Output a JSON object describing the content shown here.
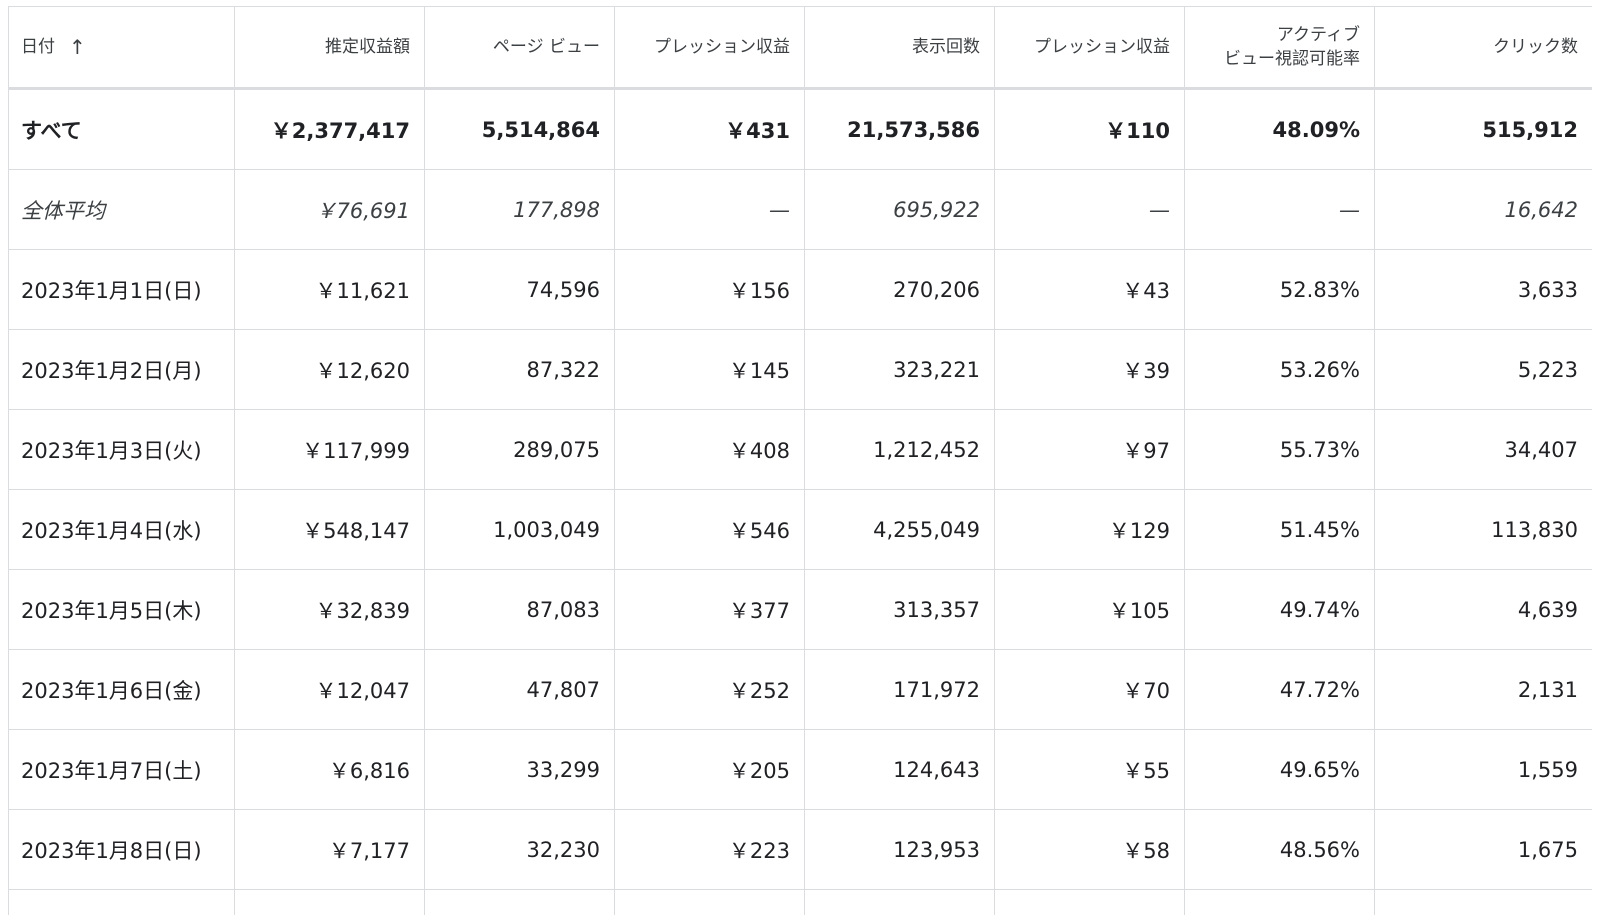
{
  "columns": [
    {
      "label": "日付",
      "sort_icon": "arrow-up-icon"
    },
    {
      "label": "推定収益額"
    },
    {
      "label": "ページ ビュー"
    },
    {
      "label": "プレッション収益"
    },
    {
      "label": "表示回数"
    },
    {
      "label": "プレッション収益"
    },
    {
      "label_line1": "アクティブ",
      "label_line2": "ビュー視認可能率"
    },
    {
      "label": "クリック数"
    }
  ],
  "total_row": [
    "すべて",
    "￥2,377,417",
    "5,514,864",
    "￥431",
    "21,573,586",
    "￥110",
    "48.09%",
    "515,912"
  ],
  "average_row": [
    "全体平均",
    "￥76,691",
    "177,898",
    "—",
    "695,922",
    "—",
    "—",
    "16,642"
  ],
  "rows": [
    [
      "2023年1月1日(日)",
      "￥11,621",
      "74,596",
      "￥156",
      "270,206",
      "￥43",
      "52.83%",
      "3,633"
    ],
    [
      "2023年1月2日(月)",
      "￥12,620",
      "87,322",
      "￥145",
      "323,221",
      "￥39",
      "53.26%",
      "5,223"
    ],
    [
      "2023年1月3日(火)",
      "￥117,999",
      "289,075",
      "￥408",
      "1,212,452",
      "￥97",
      "55.73%",
      "34,407"
    ],
    [
      "2023年1月4日(水)",
      "￥548,147",
      "1,003,049",
      "￥546",
      "4,255,049",
      "￥129",
      "51.45%",
      "113,830"
    ],
    [
      "2023年1月5日(木)",
      "￥32,839",
      "87,083",
      "￥377",
      "313,357",
      "￥105",
      "49.74%",
      "4,639"
    ],
    [
      "2023年1月6日(金)",
      "￥12,047",
      "47,807",
      "￥252",
      "171,972",
      "￥70",
      "47.72%",
      "2,131"
    ],
    [
      "2023年1月7日(土)",
      "￥6,816",
      "33,299",
      "￥205",
      "124,643",
      "￥55",
      "49.65%",
      "1,559"
    ],
    [
      "2023年1月8日(日)",
      "￥7,177",
      "32,230",
      "￥223",
      "123,953",
      "￥58",
      "48.56%",
      "1,675"
    ]
  ]
}
